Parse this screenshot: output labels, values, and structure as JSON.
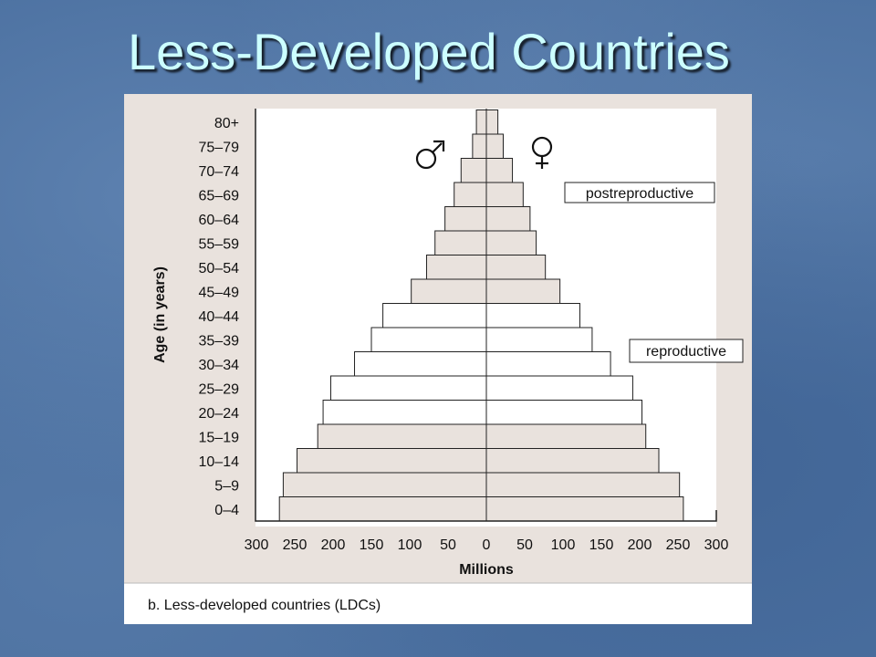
{
  "slide": {
    "title": "Less-Developed Countries"
  },
  "figure": {
    "caption": "b. Less-developed countries (LDCs)"
  },
  "chart_data": {
    "type": "bar",
    "subtype": "population-pyramid",
    "categories": [
      "0–4",
      "5–9",
      "10–14",
      "15–19",
      "20–24",
      "25–29",
      "30–34",
      "35–39",
      "40–44",
      "45–49",
      "50–54",
      "55–59",
      "60–64",
      "65–69",
      "70–74",
      "75–79",
      "80+"
    ],
    "series": [
      {
        "name": "♂",
        "values": [
          270,
          265,
          247,
          220,
          213,
          203,
          172,
          150,
          135,
          98,
          78,
          67,
          54,
          42,
          33,
          18,
          13
        ]
      },
      {
        "name": "♀",
        "values": [
          257,
          252,
          225,
          208,
          203,
          191,
          162,
          138,
          122,
          96,
          77,
          65,
          57,
          48,
          34,
          22,
          15
        ]
      }
    ],
    "annotations": [
      {
        "text": "postreproductive",
        "group": "45–49 to 80+"
      },
      {
        "text": "reproductive",
        "group": "15–19 to 40–44"
      }
    ],
    "xlabel": "Millions",
    "ylabel": "Age (in years)",
    "xticks": [
      "300",
      "250",
      "200",
      "150",
      "100",
      "50",
      "0",
      "50",
      "100",
      "150",
      "200",
      "250",
      "300"
    ],
    "xlim": [
      -300,
      300
    ],
    "grid": false,
    "colors": {
      "shaded": "#e9e2dd",
      "unshaded": "#ffffff",
      "stroke": "#222222"
    }
  }
}
